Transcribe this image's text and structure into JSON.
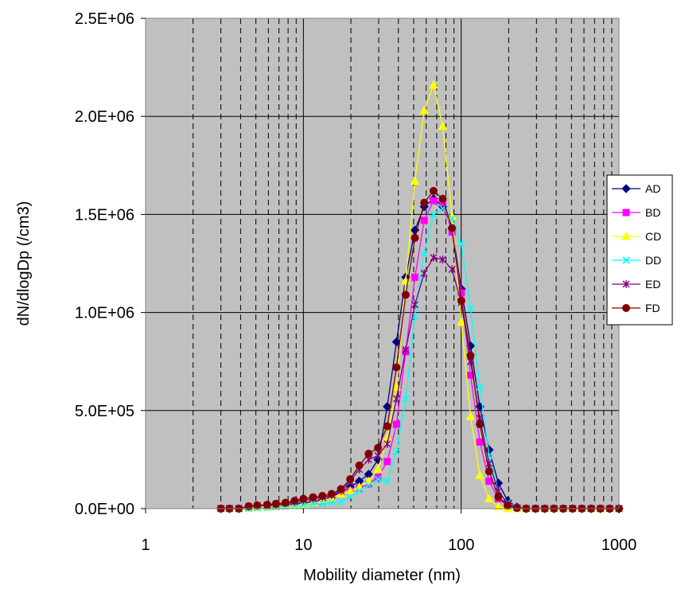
{
  "chart_data": {
    "type": "line",
    "title": "",
    "xlabel": "Mobility diameter (nm)",
    "ylabel": "dN/dlogDp (/cm3)",
    "x_scale": "log",
    "xlim": [
      1,
      1000
    ],
    "ylim": [
      0,
      2500000
    ],
    "x_ticks": [
      1,
      10,
      100,
      1000
    ],
    "x_tick_labels": [
      "1",
      "10",
      "100",
      "1000"
    ],
    "y_ticks": [
      0,
      500000,
      1000000,
      1500000,
      2000000,
      2500000
    ],
    "y_tick_labels": [
      "0.0E+00",
      "5.0E+05",
      "1.0E+06",
      "1.5E+06",
      "2.0E+06",
      "2.5E+06"
    ],
    "grid": true,
    "legend_position": "right",
    "plot_background": "#c0c0c0",
    "x": [
      3.0,
      3.4,
      3.9,
      4.5,
      5.1,
      5.9,
      6.7,
      7.7,
      8.8,
      10.0,
      11.5,
      13.2,
      15.1,
      17.3,
      19.8,
      22.6,
      25.9,
      29.7,
      34.0,
      38.9,
      44.5,
      50.9,
      58.3,
      66.8,
      76.4,
      87.5,
      100.2,
      114.7,
      131.3,
      150.3,
      172.1,
      197.0,
      225.6,
      258.3,
      295.7,
      338.5,
      387.6,
      443.7,
      508.0,
      581.6,
      665.9,
      762.3,
      872.8,
      999.2
    ],
    "series": [
      {
        "name": "AD",
        "color": "#000080",
        "marker": "diamond",
        "values": [
          0,
          0,
          0,
          8000,
          10000,
          12000,
          15000,
          20000,
          25000,
          30000,
          35000,
          45000,
          60000,
          85000,
          110000,
          140000,
          175000,
          250000,
          520000,
          850000,
          1180000,
          1420000,
          1540000,
          1580000,
          1540000,
          1430000,
          1120000,
          830000,
          520000,
          300000,
          130000,
          40000,
          8000,
          0,
          0,
          0,
          0,
          0,
          0,
          0,
          0,
          0,
          0,
          0
        ]
      },
      {
        "name": "BD",
        "color": "#ff00ff",
        "marker": "square",
        "values": [
          0,
          0,
          0,
          5000,
          8000,
          10000,
          12000,
          15000,
          18000,
          22000,
          28000,
          38000,
          55000,
          75000,
          90000,
          105000,
          125000,
          160000,
          240000,
          430000,
          800000,
          1180000,
          1470000,
          1570000,
          1560000,
          1410000,
          1100000,
          680000,
          340000,
          140000,
          50000,
          15000,
          5000,
          0,
          0,
          0,
          0,
          0,
          0,
          0,
          0,
          0,
          0,
          0
        ]
      },
      {
        "name": "CD",
        "color": "#ffff00",
        "marker": "triangle",
        "values": [
          0,
          0,
          0,
          5000,
          8000,
          10000,
          12000,
          15000,
          18000,
          22000,
          28000,
          40000,
          55000,
          75000,
          90000,
          110000,
          140000,
          200000,
          360000,
          620000,
          1160000,
          1670000,
          2030000,
          2160000,
          1950000,
          1490000,
          950000,
          470000,
          170000,
          50000,
          10000,
          0,
          0,
          0,
          0,
          0,
          0,
          0,
          0,
          0,
          0,
          0,
          0,
          0
        ]
      },
      {
        "name": "DD",
        "color": "#00ffff",
        "marker": "x",
        "values": [
          0,
          0,
          0,
          0,
          3000,
          5000,
          8000,
          12000,
          15000,
          18000,
          22000,
          25000,
          30000,
          35000,
          60000,
          90000,
          120000,
          150000,
          140000,
          290000,
          560000,
          980000,
          1300000,
          1500000,
          1530000,
          1480000,
          1350000,
          1020000,
          620000,
          270000,
          90000,
          30000,
          8000,
          0,
          0,
          0,
          0,
          0,
          0,
          0,
          0,
          0,
          0,
          0
        ]
      },
      {
        "name": "ED",
        "color": "#800080",
        "marker": "star",
        "values": [
          0,
          0,
          0,
          10000,
          15000,
          18000,
          22000,
          28000,
          35000,
          42000,
          50000,
          58000,
          68000,
          90000,
          140000,
          200000,
          250000,
          270000,
          330000,
          560000,
          810000,
          1040000,
          1200000,
          1280000,
          1270000,
          1220000,
          1050000,
          750000,
          460000,
          230000,
          90000,
          25000,
          5000,
          0,
          0,
          0,
          0,
          0,
          0,
          0,
          0,
          0,
          0,
          0
        ]
      },
      {
        "name": "FD",
        "color": "#800000",
        "marker": "circle",
        "values": [
          0,
          0,
          0,
          12000,
          16000,
          20000,
          25000,
          30000,
          40000,
          50000,
          58000,
          65000,
          75000,
          100000,
          150000,
          220000,
          280000,
          310000,
          420000,
          720000,
          1090000,
          1380000,
          1560000,
          1620000,
          1580000,
          1430000,
          1060000,
          780000,
          430000,
          190000,
          60000,
          15000,
          3000,
          0,
          0,
          0,
          0,
          0,
          0,
          0,
          0,
          0,
          0,
          0
        ]
      }
    ]
  }
}
